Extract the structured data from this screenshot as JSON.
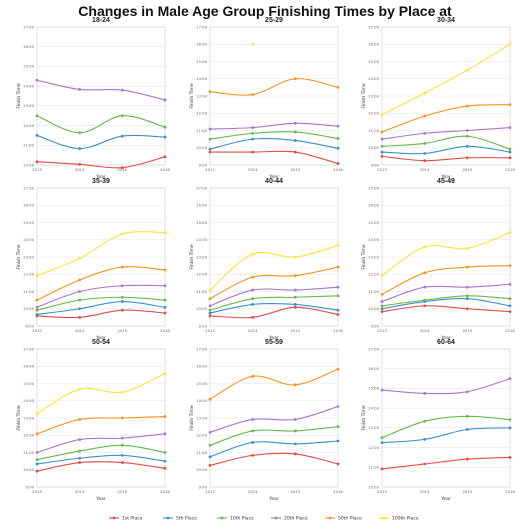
{
  "title": "Changes in Male Age Group Finishing Times by Place at",
  "colors": {
    "1st Place": "#e34a4a",
    "5th Place": "#3b8fd0",
    "10th Place": "#66b84a",
    "20th Place": "#a678c8",
    "50th Place": "#f3951f",
    "100th Place": "#f5e53a"
  },
  "chart_data": [
    {
      "type": "line",
      "title": "18-24",
      "xlabel": "Year",
      "ylabel": "Finish Time",
      "x": [
        "2013",
        "2014",
        "2015",
        "2016"
      ],
      "y_ticks": [
        "10:00",
        "11:00",
        "12:00",
        "13:00",
        "14:00",
        "15:00",
        "16:00",
        "17:00"
      ],
      "ylim": [
        "10:00",
        "17:00"
      ],
      "series": [
        {
          "name": "1st Place",
          "values": [
            "10:10",
            "10:02",
            "9:52",
            "10:25"
          ]
        },
        {
          "name": "5th Place",
          "values": [
            "11:30",
            "10:50",
            "11:28",
            "11:25"
          ]
        },
        {
          "name": "10th Place",
          "values": [
            "12:30",
            "11:38",
            "12:30",
            "11:55"
          ]
        },
        {
          "name": "20th Place",
          "values": [
            "14:18",
            "13:50",
            "13:48",
            "13:18"
          ]
        }
      ]
    },
    {
      "type": "line",
      "title": "25-29",
      "xlabel": "Year",
      "ylabel": "Finish Time",
      "x": [
        "2013",
        "2014",
        "2015",
        "2016"
      ],
      "y_ticks": [
        "9:00",
        "10:00",
        "11:00",
        "12:00",
        "13:00",
        "14:00",
        "15:00",
        "16:00",
        "17:00"
      ],
      "ylim": [
        "9:00",
        "17:00"
      ],
      "series": [
        {
          "name": "1st Place",
          "values": [
            "9:45",
            "9:45",
            "9:45",
            "9:05"
          ]
        },
        {
          "name": "5th Place",
          "values": [
            "9:55",
            "10:30",
            "10:25",
            "9:58"
          ]
        },
        {
          "name": "10th Place",
          "values": [
            "10:30",
            "10:50",
            "10:55",
            "10:32"
          ]
        },
        {
          "name": "20th Place",
          "values": [
            "11:05",
            "11:10",
            "11:25",
            "11:15"
          ]
        },
        {
          "name": "50th Place",
          "values": [
            "13:15",
            "13:05",
            "14:00",
            "13:30"
          ]
        },
        {
          "name": "100th Place",
          "values": [
            "",
            "16:00",
            "",
            ""
          ]
        }
      ]
    },
    {
      "type": "line",
      "title": "30-34",
      "xlabel": "Year",
      "ylabel": "Finish Time",
      "x": [
        "2013",
        "2014",
        "2015",
        "2016"
      ],
      "y_ticks": [
        "9:00",
        "10:00",
        "11:00",
        "12:00",
        "13:00",
        "14:00",
        "15:00",
        "16:00",
        "17:00"
      ],
      "ylim": [
        "9:00",
        "17:00"
      ],
      "series": [
        {
          "name": "1st Place",
          "values": [
            "9:30",
            "9:15",
            "9:25",
            "9:25"
          ]
        },
        {
          "name": "5th Place",
          "values": [
            "9:45",
            "9:40",
            "10:05",
            "9:45"
          ]
        },
        {
          "name": "10th Place",
          "values": [
            "10:05",
            "10:15",
            "10:40",
            "9:55"
          ]
        },
        {
          "name": "20th Place",
          "values": [
            "10:30",
            "10:50",
            "11:00",
            "11:10"
          ]
        },
        {
          "name": "50th Place",
          "values": [
            "10:55",
            "11:50",
            "12:25",
            "12:30"
          ]
        },
        {
          "name": "100th Place",
          "values": [
            "11:55",
            "13:10",
            "14:30",
            "16:00"
          ]
        }
      ]
    },
    {
      "type": "line",
      "title": "35-39",
      "xlabel": "Year",
      "ylabel": "Finish Time",
      "x": [
        "2013",
        "2014",
        "2015",
        "2016"
      ],
      "y_ticks": [
        "9:00",
        "10:00",
        "11:00",
        "12:00",
        "13:00",
        "14:00",
        "15:00",
        "16:00",
        "17:00"
      ],
      "ylim": [
        "9:00",
        "17:00"
      ],
      "series": [
        {
          "name": "1st Place",
          "values": [
            "9:35",
            "9:30",
            "9:55",
            "9:45"
          ]
        },
        {
          "name": "5th Place",
          "values": [
            "9:40",
            "10:00",
            "10:25",
            "10:05"
          ]
        },
        {
          "name": "10th Place",
          "values": [
            "9:55",
            "10:30",
            "10:40",
            "10:30"
          ]
        },
        {
          "name": "20th Place",
          "values": [
            "10:05",
            "11:00",
            "11:20",
            "11:20"
          ]
        },
        {
          "name": "50th Place",
          "values": [
            "10:30",
            "11:40",
            "12:25",
            "12:15"
          ]
        },
        {
          "name": "100th Place",
          "values": [
            "11:55",
            "12:55",
            "14:20",
            "14:25"
          ]
        }
      ]
    },
    {
      "type": "line",
      "title": "40-44",
      "xlabel": "Year",
      "ylabel": "Finish Time",
      "x": [
        "2013",
        "2014",
        "2015",
        "2016"
      ],
      "y_ticks": [
        "9:00",
        "10:00",
        "11:00",
        "12:00",
        "13:00",
        "14:00",
        "15:00",
        "16:00",
        "17:00"
      ],
      "ylim": [
        "9:00",
        "17:00"
      ],
      "series": [
        {
          "name": "1st Place",
          "values": [
            "9:35",
            "9:30",
            "10:05",
            "9:40"
          ]
        },
        {
          "name": "5th Place",
          "values": [
            "9:45",
            "10:15",
            "10:15",
            "9:55"
          ]
        },
        {
          "name": "10th Place",
          "values": [
            "9:55",
            "10:35",
            "10:40",
            "10:45"
          ]
        },
        {
          "name": "20th Place",
          "values": [
            "10:10",
            "11:05",
            "11:05",
            "11:15"
          ]
        },
        {
          "name": "50th Place",
          "values": [
            "10:35",
            "11:50",
            "11:55",
            "12:25"
          ]
        },
        {
          "name": "100th Place",
          "values": [
            "11:05",
            "13:10",
            "13:00",
            "13:40"
          ]
        }
      ]
    },
    {
      "type": "line",
      "title": "45-49",
      "xlabel": "Year",
      "ylabel": "Finish Time",
      "x": [
        "2013",
        "2014",
        "2015",
        "2016"
      ],
      "y_ticks": [
        "9:00",
        "10:00",
        "11:00",
        "12:00",
        "13:00",
        "14:00",
        "15:00",
        "16:00",
        "17:00"
      ],
      "ylim": [
        "9:00",
        "17:00"
      ],
      "series": [
        {
          "name": "1st Place",
          "values": [
            "9:50",
            "10:10",
            "10:00",
            "9:50"
          ]
        },
        {
          "name": "5th Place",
          "values": [
            "10:00",
            "10:25",
            "10:35",
            "10:10"
          ]
        },
        {
          "name": "10th Place",
          "values": [
            "10:10",
            "10:30",
            "10:45",
            "10:35"
          ]
        },
        {
          "name": "20th Place",
          "values": [
            "10:25",
            "11:15",
            "11:15",
            "11:25"
          ]
        },
        {
          "name": "50th Place",
          "values": [
            "10:50",
            "12:05",
            "12:25",
            "12:30"
          ]
        },
        {
          "name": "100th Place",
          "values": [
            "11:55",
            "13:35",
            "13:30",
            "14:25"
          ]
        }
      ]
    },
    {
      "type": "line",
      "title": "50-54",
      "xlabel": "Year",
      "ylabel": "Finish Time",
      "x": [
        "2013",
        "2014",
        "2015",
        "2016"
      ],
      "y_ticks": [
        "9:00",
        "10:00",
        "11:00",
        "12:00",
        "13:00",
        "14:00",
        "15:00",
        "16:00",
        "17:00"
      ],
      "ylim": [
        "9:00",
        "17:00"
      ],
      "series": [
        {
          "name": "1st Place",
          "values": [
            "9:55",
            "10:25",
            "10:25",
            "10:05"
          ]
        },
        {
          "name": "5th Place",
          "values": [
            "10:20",
            "10:40",
            "10:50",
            "10:30"
          ]
        },
        {
          "name": "10th Place",
          "values": [
            "10:35",
            "11:05",
            "11:25",
            "11:00"
          ]
        },
        {
          "name": "20th Place",
          "values": [
            "11:00",
            "11:45",
            "11:50",
            "12:05"
          ]
        },
        {
          "name": "50th Place",
          "values": [
            "12:05",
            "12:55",
            "13:00",
            "13:05"
          ]
        },
        {
          "name": "100th Place",
          "values": [
            "13:15",
            "14:40",
            "14:30",
            "15:35"
          ]
        }
      ]
    },
    {
      "type": "line",
      "title": "55-59",
      "xlabel": "Year",
      "ylabel": "Finish Time",
      "x": [
        "2013",
        "2014",
        "2015",
        "2016"
      ],
      "y_ticks": [
        "9:00",
        "10:00",
        "11:00",
        "12:00",
        "13:00",
        "14:00",
        "15:00",
        "16:00",
        "17:00"
      ],
      "ylim": [
        "9:00",
        "17:00"
      ],
      "series": [
        {
          "name": "1st Place",
          "values": [
            "10:15",
            "10:50",
            "10:55",
            "10:20"
          ]
        },
        {
          "name": "5th Place",
          "values": [
            "10:45",
            "11:35",
            "11:30",
            "11:40"
          ]
        },
        {
          "name": "10th Place",
          "values": [
            "11:25",
            "12:15",
            "12:15",
            "12:30"
          ]
        },
        {
          "name": "20th Place",
          "values": [
            "12:10",
            "12:55",
            "12:55",
            "13:40"
          ]
        },
        {
          "name": "50th Place",
          "values": [
            "14:05",
            "15:25",
            "14:55",
            "15:50"
          ]
        }
      ]
    },
    {
      "type": "line",
      "title": "60-64",
      "xlabel": "Year",
      "ylabel": "Finish Time",
      "x": [
        "2013",
        "2014",
        "2015",
        "2016"
      ],
      "y_ticks": [
        "10:00",
        "11:00",
        "12:00",
        "13:00",
        "14:00",
        "15:00",
        "16:00",
        "17:00"
      ],
      "ylim": [
        "10:00",
        "17:00"
      ],
      "series": [
        {
          "name": "1st Place",
          "values": [
            "10:55",
            "11:10",
            "11:25",
            "11:30"
          ]
        },
        {
          "name": "5th Place",
          "values": [
            "12:15",
            "12:25",
            "12:55",
            "13:00"
          ]
        },
        {
          "name": "10th Place",
          "values": [
            "12:30",
            "13:20",
            "13:35",
            "13:25"
          ]
        },
        {
          "name": "20th Place",
          "values": [
            "14:55",
            "14:45",
            "14:50",
            "15:30"
          ]
        }
      ]
    }
  ],
  "legend": [
    "1st Place",
    "5th Place",
    "10th Place",
    "20th Place",
    "50th Place",
    "100th Place"
  ]
}
